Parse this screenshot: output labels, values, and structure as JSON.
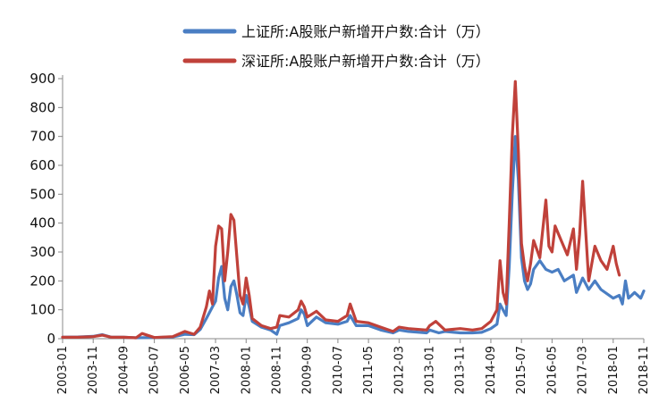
{
  "chart_data": {
    "type": "line",
    "title": "",
    "xlabel": "",
    "ylabel": "",
    "ylim": [
      0,
      900
    ],
    "yticks": [
      0,
      100,
      200,
      300,
      400,
      500,
      600,
      700,
      800,
      900
    ],
    "xtick_labels": [
      "2003-01",
      "2003-11",
      "2004-09",
      "2005-07",
      "2006-05",
      "2007-03",
      "2008-01",
      "2008-11",
      "2009-09",
      "2010-07",
      "2011-05",
      "2012-03",
      "2013-01",
      "2013-11",
      "2014-09",
      "2015-07",
      "2016-05",
      "2017-03",
      "2018-01",
      "2018-11"
    ],
    "x_range": [
      "2003-01",
      "2018-11"
    ],
    "grid": false,
    "legend_position": "top-right",
    "series": [
      {
        "name": "上证所:A股账户新增开户数:合计（万）",
        "color": "#4A7EC3",
        "points": [
          [
            "2003-01",
            5
          ],
          [
            "2003-06",
            6
          ],
          [
            "2003-11",
            8
          ],
          [
            "2004-02",
            14
          ],
          [
            "2004-05",
            5
          ],
          [
            "2004-09",
            5
          ],
          [
            "2005-01",
            3
          ],
          [
            "2005-07",
            4
          ],
          [
            "2006-01",
            6
          ],
          [
            "2006-05",
            15
          ],
          [
            "2006-08",
            14
          ],
          [
            "2006-10",
            32
          ],
          [
            "2006-12",
            70
          ],
          [
            "2007-02",
            110
          ],
          [
            "2007-03",
            130
          ],
          [
            "2007-04",
            210
          ],
          [
            "2007-05",
            250
          ],
          [
            "2007-06",
            140
          ],
          [
            "2007-07",
            100
          ],
          [
            "2007-08",
            180
          ],
          [
            "2007-09",
            200
          ],
          [
            "2007-10",
            150
          ],
          [
            "2007-11",
            90
          ],
          [
            "2007-12",
            80
          ],
          [
            "2008-01",
            150
          ],
          [
            "2008-02",
            110
          ],
          [
            "2008-03",
            60
          ],
          [
            "2008-06",
            40
          ],
          [
            "2008-09",
            30
          ],
          [
            "2008-11",
            15
          ],
          [
            "2008-12",
            45
          ],
          [
            "2009-03",
            55
          ],
          [
            "2009-06",
            70
          ],
          [
            "2009-07",
            100
          ],
          [
            "2009-08",
            85
          ],
          [
            "2009-09",
            45
          ],
          [
            "2009-12",
            75
          ],
          [
            "2010-03",
            55
          ],
          [
            "2010-07",
            50
          ],
          [
            "2010-10",
            60
          ],
          [
            "2010-11",
            80
          ],
          [
            "2011-01",
            45
          ],
          [
            "2011-05",
            45
          ],
          [
            "2011-09",
            30
          ],
          [
            "2012-01",
            20
          ],
          [
            "2012-03",
            30
          ],
          [
            "2012-06",
            25
          ],
          [
            "2012-12",
            20
          ],
          [
            "2013-01",
            30
          ],
          [
            "2013-04",
            20
          ],
          [
            "2013-06",
            25
          ],
          [
            "2013-11",
            20
          ],
          [
            "2014-03",
            20
          ],
          [
            "2014-06",
            22
          ],
          [
            "2014-09",
            35
          ],
          [
            "2014-11",
            50
          ],
          [
            "2014-12",
            120
          ],
          [
            "2015-01",
            100
          ],
          [
            "2015-02",
            80
          ],
          [
            "2015-03",
            250
          ],
          [
            "2015-04",
            500
          ],
          [
            "2015-05",
            700
          ],
          [
            "2015-06",
            550
          ],
          [
            "2015-07",
            280
          ],
          [
            "2015-08",
            200
          ],
          [
            "2015-09",
            170
          ],
          [
            "2015-10",
            190
          ],
          [
            "2015-11",
            240
          ],
          [
            "2016-01",
            270
          ],
          [
            "2016-03",
            240
          ],
          [
            "2016-05",
            230
          ],
          [
            "2016-07",
            240
          ],
          [
            "2016-09",
            200
          ],
          [
            "2016-12",
            220
          ],
          [
            "2017-01",
            160
          ],
          [
            "2017-03",
            210
          ],
          [
            "2017-05",
            170
          ],
          [
            "2017-07",
            200
          ],
          [
            "2017-09",
            170
          ],
          [
            "2018-01",
            140
          ],
          [
            "2018-03",
            150
          ],
          [
            "2018-04",
            120
          ],
          [
            "2018-05",
            200
          ],
          [
            "2018-06",
            140
          ],
          [
            "2018-08",
            160
          ],
          [
            "2018-10",
            140
          ],
          [
            "2018-11",
            165
          ]
        ]
      },
      {
        "name": "深证所:A股账户新增开户数:合计（万）",
        "color": "#C0413A",
        "points": [
          [
            "2003-01",
            5
          ],
          [
            "2003-06",
            5
          ],
          [
            "2003-11",
            7
          ],
          [
            "2004-02",
            12
          ],
          [
            "2004-05",
            5
          ],
          [
            "2004-09",
            5
          ],
          [
            "2005-01",
            3
          ],
          [
            "2005-03",
            18
          ],
          [
            "2005-07",
            4
          ],
          [
            "2006-01",
            7
          ],
          [
            "2006-05",
            25
          ],
          [
            "2006-08",
            15
          ],
          [
            "2006-10",
            40
          ],
          [
            "2006-12",
            110
          ],
          [
            "2007-01",
            165
          ],
          [
            "2007-02",
            120
          ],
          [
            "2007-03",
            320
          ],
          [
            "2007-04",
            390
          ],
          [
            "2007-05",
            380
          ],
          [
            "2007-06",
            200
          ],
          [
            "2007-07",
            300
          ],
          [
            "2007-08",
            430
          ],
          [
            "2007-09",
            410
          ],
          [
            "2007-10",
            280
          ],
          [
            "2007-11",
            150
          ],
          [
            "2007-12",
            120
          ],
          [
            "2008-01",
            210
          ],
          [
            "2008-02",
            150
          ],
          [
            "2008-03",
            70
          ],
          [
            "2008-06",
            45
          ],
          [
            "2008-09",
            35
          ],
          [
            "2008-11",
            40
          ],
          [
            "2008-12",
            80
          ],
          [
            "2009-03",
            75
          ],
          [
            "2009-06",
            100
          ],
          [
            "2009-07",
            130
          ],
          [
            "2009-08",
            110
          ],
          [
            "2009-09",
            75
          ],
          [
            "2009-12",
            95
          ],
          [
            "2010-03",
            65
          ],
          [
            "2010-07",
            60
          ],
          [
            "2010-10",
            80
          ],
          [
            "2010-11",
            120
          ],
          [
            "2011-01",
            60
          ],
          [
            "2011-05",
            55
          ],
          [
            "2011-09",
            40
          ],
          [
            "2012-01",
            25
          ],
          [
            "2012-03",
            40
          ],
          [
            "2012-06",
            35
          ],
          [
            "2012-12",
            30
          ],
          [
            "2013-01",
            45
          ],
          [
            "2013-03",
            60
          ],
          [
            "2013-06",
            30
          ],
          [
            "2013-11",
            35
          ],
          [
            "2014-03",
            30
          ],
          [
            "2014-06",
            35
          ],
          [
            "2014-09",
            60
          ],
          [
            "2014-11",
            100
          ],
          [
            "2014-12",
            270
          ],
          [
            "2015-01",
            160
          ],
          [
            "2015-02",
            120
          ],
          [
            "2015-03",
            400
          ],
          [
            "2015-04",
            700
          ],
          [
            "2015-05",
            890
          ],
          [
            "2015-06",
            650
          ],
          [
            "2015-07",
            330
          ],
          [
            "2015-08",
            250
          ],
          [
            "2015-09",
            200
          ],
          [
            "2015-10",
            260
          ],
          [
            "2015-11",
            340
          ],
          [
            "2016-01",
            280
          ],
          [
            "2016-03",
            480
          ],
          [
            "2016-04",
            320
          ],
          [
            "2016-05",
            300
          ],
          [
            "2016-06",
            390
          ],
          [
            "2016-08",
            340
          ],
          [
            "2016-10",
            290
          ],
          [
            "2016-12",
            380
          ],
          [
            "2017-01",
            240
          ],
          [
            "2017-02",
            360
          ],
          [
            "2017-03",
            545
          ],
          [
            "2017-05",
            200
          ],
          [
            "2017-07",
            320
          ],
          [
            "2017-09",
            270
          ],
          [
            "2017-11",
            240
          ],
          [
            "2018-01",
            320
          ],
          [
            "2018-02",
            260
          ],
          [
            "2018-03",
            220
          ]
        ]
      }
    ]
  }
}
